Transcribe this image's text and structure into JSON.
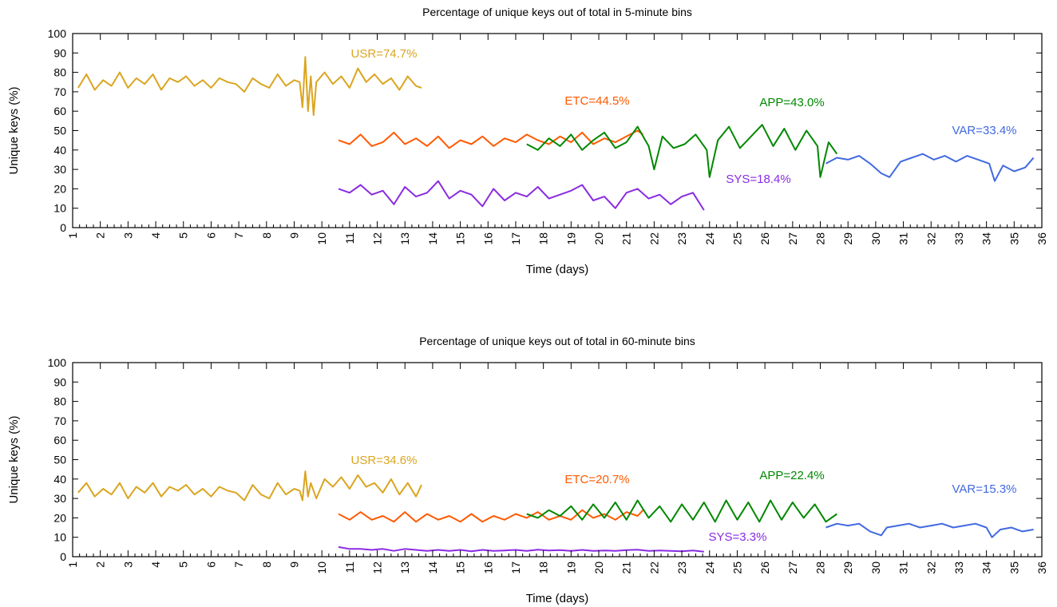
{
  "chart_data": [
    {
      "type": "line",
      "title": "Percentage of unique keys out of total in 5-minute bins",
      "xlabel": "Time (days)",
      "ylabel": "Unique keys (%)",
      "xlim": [
        1,
        36
      ],
      "ylim": [
        0,
        100
      ],
      "xticks": [
        1,
        2,
        3,
        4,
        5,
        6,
        7,
        8,
        9,
        10,
        11,
        12,
        13,
        14,
        15,
        16,
        17,
        18,
        19,
        20,
        21,
        22,
        23,
        24,
        25,
        26,
        27,
        28,
        29,
        30,
        31,
        32,
        33,
        34,
        35,
        36
      ],
      "yticks": [
        0,
        10,
        20,
        30,
        40,
        50,
        60,
        70,
        80,
        90,
        100
      ],
      "grid": false,
      "series": [
        {
          "name": "USR=74.7%",
          "color": "#daa520",
          "x": [
            1.2,
            1.5,
            1.8,
            2.1,
            2.4,
            2.7,
            3.0,
            3.3,
            3.6,
            3.9,
            4.2,
            4.5,
            4.8,
            5.1,
            5.4,
            5.7,
            6.0,
            6.3,
            6.6,
            6.9,
            7.2,
            7.5,
            7.8,
            8.1,
            8.4,
            8.7,
            9.0,
            9.2,
            9.3,
            9.4,
            9.5,
            9.6,
            9.7,
            9.8,
            10.1,
            10.4,
            10.7,
            11.0,
            11.3,
            11.6,
            11.9,
            12.2,
            12.5,
            12.8,
            13.1,
            13.4,
            13.6
          ],
          "y": [
            72,
            79,
            71,
            76,
            73,
            80,
            72,
            77,
            74,
            79,
            71,
            77,
            75,
            78,
            73,
            76,
            72,
            77,
            75,
            74,
            70,
            77,
            74,
            72,
            79,
            73,
            76,
            75,
            62,
            88,
            60,
            78,
            58,
            75,
            80,
            74,
            78,
            72,
            82,
            75,
            79,
            74,
            77,
            71,
            78,
            73,
            72
          ]
        },
        {
          "name": "ETC=44.5%",
          "color": "#ff5a00",
          "x": [
            10.6,
            11.0,
            11.4,
            11.8,
            12.2,
            12.6,
            13.0,
            13.4,
            13.8,
            14.2,
            14.6,
            15.0,
            15.4,
            15.8,
            16.2,
            16.6,
            17.0,
            17.4,
            17.8,
            18.2,
            18.6,
            19.0,
            19.4,
            19.8,
            20.2,
            20.6,
            21.0,
            21.4,
            21.6
          ],
          "y": [
            45,
            43,
            48,
            42,
            44,
            49,
            43,
            46,
            42,
            47,
            41,
            45,
            43,
            47,
            42,
            46,
            44,
            48,
            45,
            43,
            47,
            44,
            49,
            43,
            46,
            44,
            47,
            50,
            48
          ]
        },
        {
          "name": "APP=43.0%",
          "color": "#008800",
          "x": [
            17.4,
            17.8,
            18.2,
            18.6,
            19.0,
            19.4,
            19.8,
            20.2,
            20.6,
            21.0,
            21.4,
            21.8,
            22.0,
            22.3,
            22.7,
            23.1,
            23.5,
            23.9,
            24.0,
            24.3,
            24.7,
            25.1,
            25.5,
            25.9,
            26.3,
            26.7,
            27.1,
            27.5,
            27.9,
            28.0,
            28.3,
            28.6
          ],
          "y": [
            43,
            40,
            46,
            42,
            48,
            40,
            45,
            49,
            41,
            44,
            52,
            42,
            30,
            47,
            41,
            43,
            48,
            40,
            26,
            45,
            52,
            41,
            47,
            53,
            42,
            51,
            40,
            50,
            42,
            26,
            44,
            38
          ]
        },
        {
          "name": "VAR=33.4%",
          "color": "#4169e1",
          "x": [
            28.2,
            28.6,
            29.0,
            29.4,
            29.8,
            30.2,
            30.5,
            30.9,
            31.3,
            31.7,
            32.1,
            32.5,
            32.9,
            33.3,
            33.7,
            34.1,
            34.3,
            34.6,
            35.0,
            35.4,
            35.7
          ],
          "y": [
            33,
            36,
            35,
            37,
            33,
            28,
            26,
            34,
            36,
            38,
            35,
            37,
            34,
            37,
            35,
            33,
            24,
            32,
            29,
            31,
            36
          ]
        },
        {
          "name": "SYS=18.4%",
          "color": "#8a2be2",
          "x": [
            10.6,
            11.0,
            11.4,
            11.8,
            12.2,
            12.6,
            13.0,
            13.4,
            13.8,
            14.2,
            14.6,
            15.0,
            15.4,
            15.8,
            16.2,
            16.6,
            17.0,
            17.4,
            17.8,
            18.2,
            18.6,
            19.0,
            19.4,
            19.8,
            20.2,
            20.6,
            21.0,
            21.4,
            21.8,
            22.2,
            22.6,
            23.0,
            23.4,
            23.8
          ],
          "y": [
            20,
            18,
            22,
            17,
            19,
            12,
            21,
            16,
            18,
            24,
            15,
            19,
            17,
            11,
            20,
            14,
            18,
            16,
            21,
            15,
            17,
            19,
            22,
            14,
            16,
            10,
            18,
            20,
            15,
            17,
            12,
            16,
            18,
            9
          ]
        }
      ]
    },
    {
      "type": "line",
      "title": "Percentage of unique keys out of total in 60-minute bins",
      "xlabel": "Time (days)",
      "ylabel": "Unique keys (%)",
      "xlim": [
        1,
        36
      ],
      "ylim": [
        0,
        100
      ],
      "xticks": [
        1,
        2,
        3,
        4,
        5,
        6,
        7,
        8,
        9,
        10,
        11,
        12,
        13,
        14,
        15,
        16,
        17,
        18,
        19,
        20,
        21,
        22,
        23,
        24,
        25,
        26,
        27,
        28,
        29,
        30,
        31,
        32,
        33,
        34,
        35,
        36
      ],
      "yticks": [
        0,
        10,
        20,
        30,
        40,
        50,
        60,
        70,
        80,
        90,
        100
      ],
      "grid": false,
      "series": [
        {
          "name": "USR=34.6%",
          "color": "#daa520",
          "x": [
            1.2,
            1.5,
            1.8,
            2.1,
            2.4,
            2.7,
            3.0,
            3.3,
            3.6,
            3.9,
            4.2,
            4.5,
            4.8,
            5.1,
            5.4,
            5.7,
            6.0,
            6.3,
            6.6,
            6.9,
            7.2,
            7.5,
            7.8,
            8.1,
            8.4,
            8.7,
            9.0,
            9.2,
            9.3,
            9.4,
            9.5,
            9.6,
            9.8,
            10.1,
            10.4,
            10.7,
            11.0,
            11.3,
            11.6,
            11.9,
            12.2,
            12.5,
            12.8,
            13.1,
            13.4,
            13.6
          ],
          "y": [
            33,
            38,
            31,
            35,
            32,
            38,
            30,
            36,
            33,
            38,
            31,
            36,
            34,
            37,
            32,
            35,
            31,
            36,
            34,
            33,
            29,
            37,
            32,
            30,
            38,
            32,
            35,
            34,
            29,
            44,
            31,
            38,
            30,
            40,
            36,
            41,
            35,
            42,
            36,
            38,
            33,
            40,
            32,
            38,
            31,
            37
          ]
        },
        {
          "name": "ETC=20.7%",
          "color": "#ff5a00",
          "x": [
            10.6,
            11.0,
            11.4,
            11.8,
            12.2,
            12.6,
            13.0,
            13.4,
            13.8,
            14.2,
            14.6,
            15.0,
            15.4,
            15.8,
            16.2,
            16.6,
            17.0,
            17.4,
            17.8,
            18.2,
            18.6,
            19.0,
            19.4,
            19.8,
            20.2,
            20.6,
            21.0,
            21.4,
            21.6
          ],
          "y": [
            22,
            19,
            23,
            19,
            21,
            18,
            23,
            18,
            22,
            19,
            21,
            18,
            22,
            18,
            21,
            19,
            22,
            20,
            23,
            19,
            21,
            19,
            24,
            20,
            22,
            19,
            23,
            21,
            24
          ]
        },
        {
          "name": "APP=22.4%",
          "color": "#008800",
          "x": [
            17.4,
            17.8,
            18.2,
            18.6,
            19.0,
            19.4,
            19.8,
            20.2,
            20.6,
            21.0,
            21.4,
            21.8,
            22.2,
            22.6,
            23.0,
            23.4,
            23.8,
            24.2,
            24.6,
            25.0,
            25.4,
            25.8,
            26.2,
            26.6,
            27.0,
            27.4,
            27.8,
            28.2,
            28.6
          ],
          "y": [
            22,
            20,
            24,
            21,
            26,
            19,
            27,
            20,
            28,
            19,
            29,
            20,
            26,
            18,
            27,
            19,
            28,
            18,
            29,
            19,
            28,
            18,
            29,
            19,
            28,
            20,
            27,
            18,
            22
          ]
        },
        {
          "name": "VAR=15.3%",
          "color": "#4169e1",
          "x": [
            28.2,
            28.6,
            29.0,
            29.4,
            29.8,
            30.2,
            30.4,
            30.8,
            31.2,
            31.6,
            32.0,
            32.4,
            32.8,
            33.2,
            33.6,
            34.0,
            34.2,
            34.5,
            34.9,
            35.3,
            35.7
          ],
          "y": [
            15,
            17,
            16,
            17,
            13,
            11,
            15,
            16,
            17,
            15,
            16,
            17,
            15,
            16,
            17,
            15,
            10,
            14,
            15,
            13,
            14
          ]
        },
        {
          "name": "SYS=3.3%",
          "color": "#8a2be2",
          "x": [
            10.6,
            11.0,
            11.4,
            11.8,
            12.2,
            12.6,
            13.0,
            13.4,
            13.8,
            14.2,
            14.6,
            15.0,
            15.4,
            15.8,
            16.2,
            16.6,
            17.0,
            17.4,
            17.8,
            18.2,
            18.6,
            19.0,
            19.4,
            19.8,
            20.2,
            20.6,
            21.0,
            21.4,
            21.8,
            22.2,
            22.6,
            23.0,
            23.4,
            23.8
          ],
          "y": [
            5,
            4,
            4,
            3.5,
            4,
            3,
            4,
            3.5,
            3,
            3.5,
            3,
            3.5,
            2.8,
            3.5,
            3,
            3.2,
            3.5,
            3,
            3.6,
            3.2,
            3.4,
            3,
            3.5,
            3,
            3.2,
            3,
            3.4,
            3.6,
            3,
            3.2,
            3,
            2.8,
            3.2,
            2.6
          ]
        }
      ]
    }
  ]
}
